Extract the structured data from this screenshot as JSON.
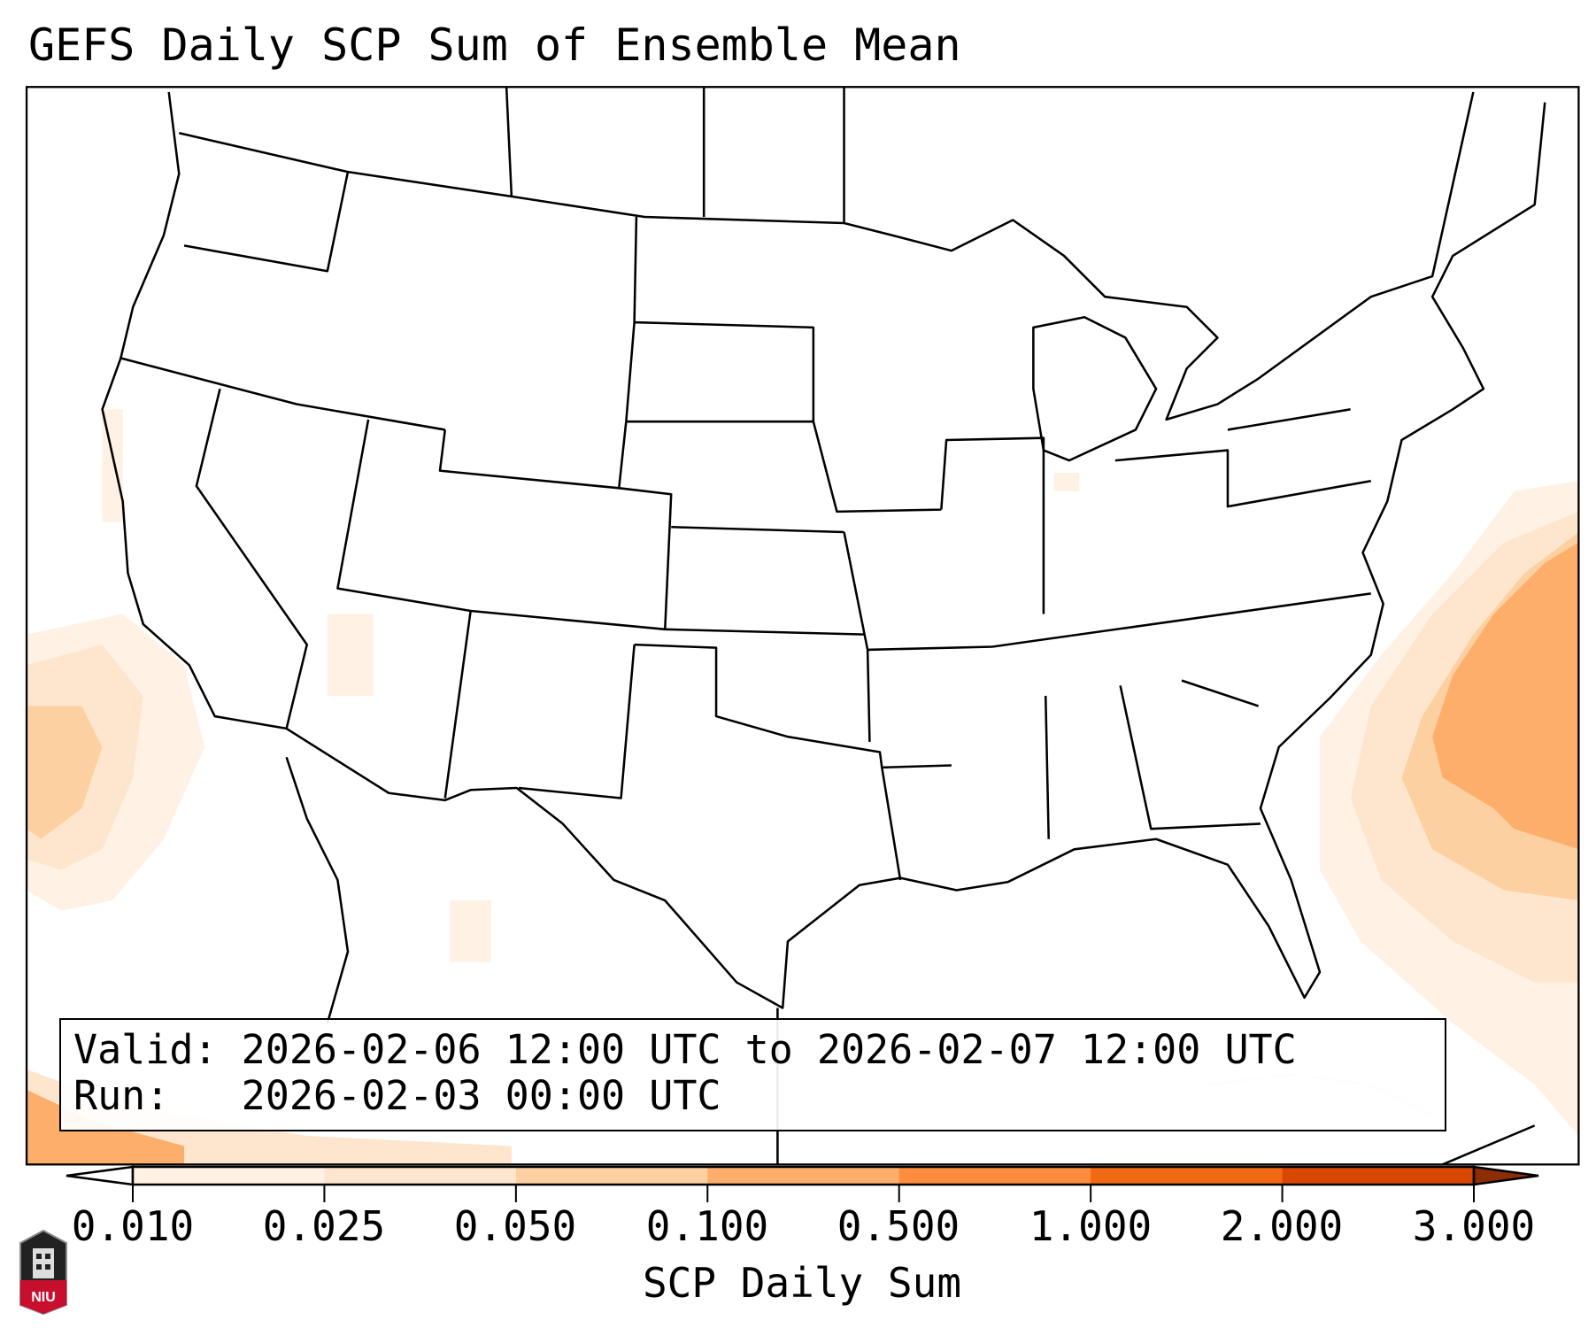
{
  "title": "GEFS Daily SCP Sum of Ensemble Mean",
  "info_box": {
    "valid_label": "Valid:",
    "valid_value": "2026-02-06 12:00 UTC to 2026-02-07 12:00 UTC",
    "run_label": "Run:",
    "run_value": "2026-02-03 00:00 UTC"
  },
  "colorbar": {
    "label": "SCP Daily Sum",
    "ticks": [
      "0.010",
      "0.025",
      "0.050",
      "0.100",
      "0.500",
      "1.000",
      "2.000",
      "3.000"
    ],
    "colors": [
      "#fff1e3",
      "#fee6ce",
      "#fdd0a2",
      "#fdae6b",
      "#fd8d3c",
      "#f16913",
      "#d94801"
    ],
    "under_color": "#ffffff",
    "over_color": "#8c2d04",
    "extend": "both"
  },
  "logo": {
    "text": "NIU"
  }
}
